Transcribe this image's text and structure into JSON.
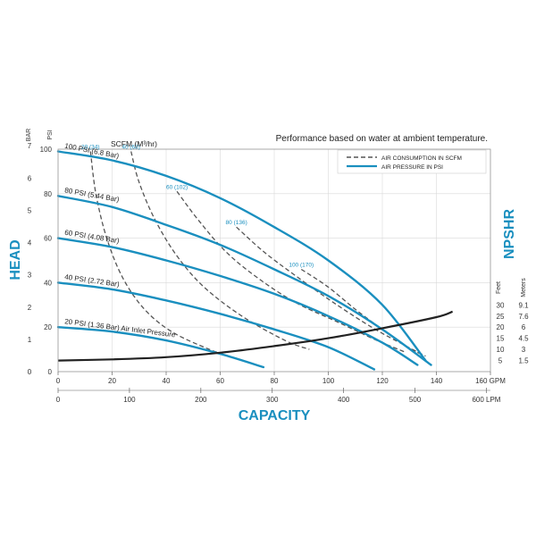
{
  "chart_data": {
    "type": "line",
    "title": "Performance based on water at ambient temperature.",
    "xlabel": "CAPACITY",
    "ylabel": "HEAD",
    "y2label": "NPSHR",
    "x_unit_gpm": "GPM",
    "x_unit_lpm": "LPM",
    "y_unit_psi": "PSI",
    "y_unit_bar": "BAR",
    "npsh_unit_feet": "Feet",
    "npsh_unit_meters": "Meters",
    "scfm_label": "SCFM (M³/hr)",
    "xlim_gpm": [
      0,
      160
    ],
    "ylim_psi": [
      0,
      100
    ],
    "grid": true,
    "legend_position": "top-right",
    "legend": {
      "dashed": "AIR CONSUMPTION IN SCFM",
      "solid": "AIR PRESSURE IN PSI"
    },
    "colors": {
      "pressure": "#1a8fbf",
      "consumption": "#555555",
      "npshr": "#222222",
      "title_blue": "#1a8fbf",
      "grid": "#d9d9d9"
    },
    "x_ticks_gpm": [
      "0",
      "20",
      "40",
      "60",
      "80",
      "100",
      "120",
      "140",
      "160 GPM"
    ],
    "x_ticks_gpm_values": [
      0,
      20,
      40,
      60,
      80,
      100,
      120,
      140,
      160
    ],
    "x_ticks_lpm": [
      "0",
      "100",
      "200",
      "300",
      "400",
      "500",
      "600 LPM"
    ],
    "x_ticks_lpm_values": [
      0,
      100,
      200,
      300,
      400,
      500,
      600
    ],
    "y_ticks_psi": [
      "0",
      "20",
      "40",
      "60",
      "80",
      "100"
    ],
    "y_ticks_psi_values": [
      0,
      20,
      40,
      60,
      80,
      100
    ],
    "y_ticks_bar": [
      "0",
      "1",
      "2",
      "3",
      "4",
      "5",
      "6",
      "7"
    ],
    "y_ticks_bar_values": [
      0,
      1,
      2,
      3,
      4,
      5,
      6,
      7
    ],
    "npsh_feet": [
      "30",
      "25",
      "20",
      "15",
      "10",
      "5"
    ],
    "npsh_meters": [
      "9.1",
      "7.6",
      "6",
      "4.5",
      "3",
      "1.5"
    ],
    "npsh_row_psi": [
      30,
      25,
      20,
      15,
      10,
      5
    ],
    "pressure_series": [
      {
        "name": "100 PSI (6.8 Bar)",
        "label": "100 PSI (6.8 Bar)",
        "x": [
          0,
          20,
          40,
          60,
          80,
          100,
          120,
          136
        ],
        "y": [
          99,
          95,
          88,
          78,
          65,
          50,
          30,
          5
        ]
      },
      {
        "name": "80 PSI (5.44 Bar)",
        "label": "80 PSI (5.44 Bar)",
        "x": [
          0,
          20,
          40,
          60,
          80,
          100,
          120,
          138
        ],
        "y": [
          79,
          74,
          66,
          57,
          46,
          34,
          19,
          3
        ]
      },
      {
        "name": "60 PSI (4.08 Bar)",
        "label": "60 PSI (4.08 Bar)",
        "x": [
          0,
          20,
          40,
          60,
          80,
          100,
          120,
          133
        ],
        "y": [
          60,
          56,
          50,
          43,
          35,
          25,
          13,
          3
        ]
      },
      {
        "name": "40 PSI (2.72 Bar)",
        "label": "40 PSI (2.72 Bar)",
        "x": [
          0,
          20,
          40,
          60,
          80,
          100,
          117
        ],
        "y": [
          40,
          37,
          32,
          26,
          19,
          11,
          1
        ]
      },
      {
        "name": "20 PSI (1.36 Bar) Air Inlet Pressure",
        "label": "20 PSI (1.36 Bar) Air Inlet Pressure",
        "x": [
          0,
          20,
          40,
          60,
          76
        ],
        "y": [
          20,
          18,
          14,
          8,
          2
        ]
      }
    ],
    "consumption_series": [
      {
        "label": "20 (34)",
        "x": [
          12,
          14,
          18,
          24,
          32,
          42,
          56,
          66
        ],
        "y": [
          99,
          80,
          60,
          42,
          28,
          18,
          10,
          6
        ]
      },
      {
        "label": "40 (68)",
        "x": [
          27,
          30,
          36,
          44,
          54,
          68,
          84,
          93
        ],
        "y": [
          99,
          85,
          68,
          52,
          38,
          25,
          14,
          10
        ]
      },
      {
        "label": "60 (102)",
        "x": [
          44,
          52,
          62,
          74,
          88,
          104,
          118,
          128
        ],
        "y": [
          81,
          68,
          54,
          42,
          31,
          22,
          14,
          9
        ]
      },
      {
        "label": "80 (136)",
        "x": [
          66,
          76,
          88,
          102,
          116,
          128,
          136
        ],
        "y": [
          65,
          54,
          43,
          31,
          20,
          12,
          7
        ]
      },
      {
        "label": "100 (170)",
        "x": [
          90,
          100,
          110,
          120,
          128,
          134
        ],
        "y": [
          46,
          38,
          28,
          19,
          12,
          8
        ]
      }
    ],
    "npshr_curve": {
      "x": [
        0,
        20,
        40,
        60,
        80,
        100,
        120,
        140,
        146
      ],
      "y": [
        5,
        5.5,
        6.5,
        8.5,
        11.5,
        15,
        19.5,
        24.5,
        27
      ]
    }
  }
}
